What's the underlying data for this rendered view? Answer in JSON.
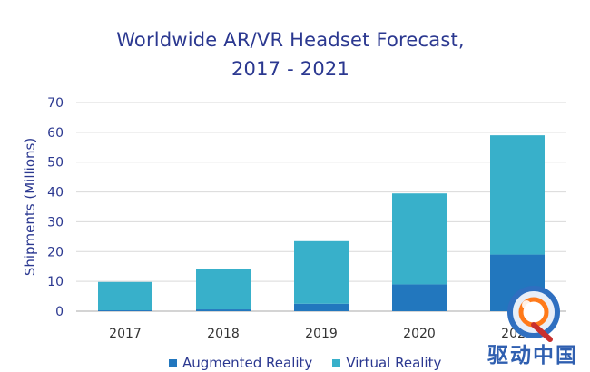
{
  "chart_data": {
    "type": "bar",
    "stacked": true,
    "title_line1": "Worldwide AR/VR Headset Forecast,",
    "title_line2": "2017 - 2021",
    "ylabel": "Shipments (Millions)",
    "xlabel": "",
    "ylim": [
      0,
      70
    ],
    "yticks": [
      0,
      10,
      20,
      30,
      40,
      50,
      60,
      70
    ],
    "grid": true,
    "legend_position": "bottom",
    "categories": [
      "2017",
      "2018",
      "2019",
      "2020",
      "2021"
    ],
    "series": [
      {
        "name": "Augmented Reality",
        "color": "#2277be",
        "values": [
          0.3,
          0.6,
          2.5,
          9,
          19
        ]
      },
      {
        "name": "Virtual Reality",
        "color": "#38b0ca",
        "values": [
          9.5,
          13.7,
          21,
          30.5,
          40
        ]
      }
    ]
  },
  "watermark": {
    "text": "驱动中国"
  }
}
